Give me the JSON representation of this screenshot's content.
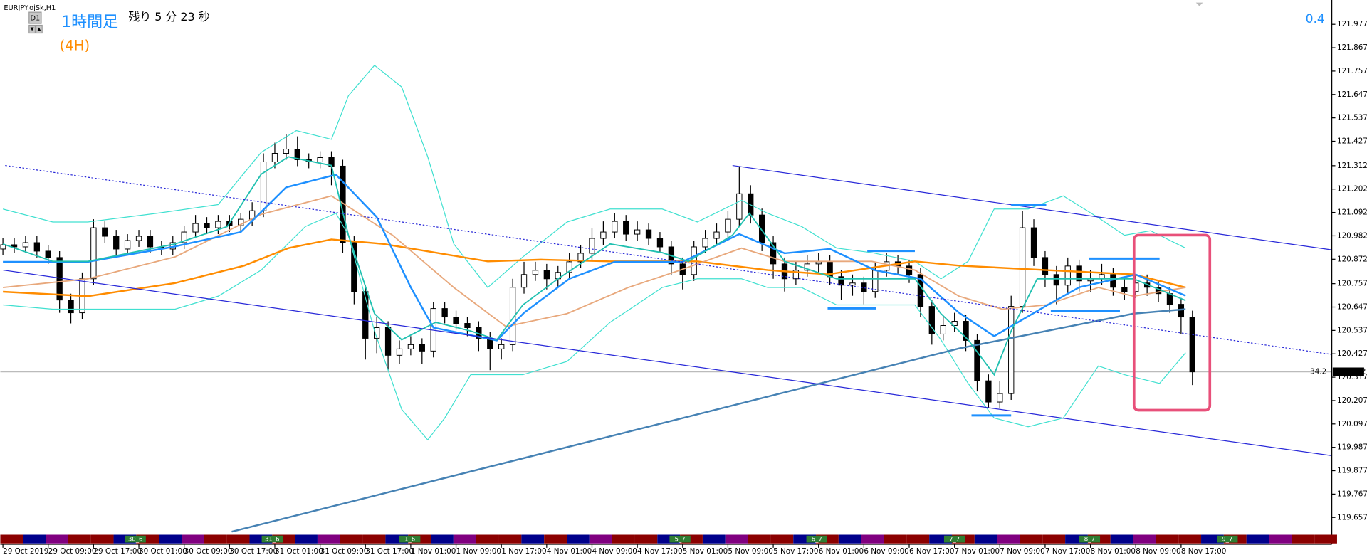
{
  "chart_data": {
    "type": "candlestick",
    "symbol_label": "EURJPY.ojSk,H1",
    "timeframe_button": "D1",
    "title": "1時間足",
    "subtitle": "(4H)",
    "countdown": "残り 5 分 23 秒",
    "corner_value": "0.4",
    "price_tag_label": "34.2",
    "current_price": 120.342,
    "ylim": [
      119.584,
      122.071
    ],
    "yticks": [
      121.977,
      121.867,
      121.757,
      121.647,
      121.537,
      121.427,
      121.312,
      121.202,
      121.092,
      120.982,
      120.872,
      120.757,
      120.647,
      120.537,
      120.427,
      120.317,
      120.207,
      120.097,
      119.987,
      119.877,
      119.767,
      119.657
    ],
    "categories": [
      "29 Oct 2019",
      null,
      null,
      null,
      "29 Oct 09:00",
      null,
      null,
      null,
      "29 Oct 17:00",
      null,
      null,
      null,
      "30 Oct 01:00",
      null,
      null,
      null,
      "30 Oct 09:00",
      null,
      null,
      null,
      "30 Oct 17:00",
      null,
      null,
      null,
      "31 Oct 01:00",
      null,
      null,
      null,
      "31 Oct 09:00",
      null,
      null,
      null,
      "31 Oct 17:00",
      null,
      null,
      null,
      "1 Nov 01:00",
      null,
      null,
      null,
      "1 Nov 09:00",
      null,
      null,
      null,
      "1 Nov 17:00",
      null,
      null,
      null,
      "4 Nov 01:00",
      null,
      null,
      null,
      "4 Nov 09:00",
      null,
      null,
      null,
      "4 Nov 17:00",
      null,
      null,
      null,
      "5 Nov 01:00",
      null,
      null,
      null,
      "5 Nov 09:00",
      null,
      null,
      null,
      "5 Nov 17:00",
      null,
      null,
      null,
      "6 Nov 01:00",
      null,
      null,
      null,
      "6 Nov 09:00",
      null,
      null,
      null,
      "6 Nov 17:00",
      null,
      null,
      null,
      "7 Nov 01:00",
      null,
      null,
      null,
      "7 Nov 09:00",
      null,
      null,
      null,
      "7 Nov 17:00",
      null,
      null,
      null,
      "8 Nov 01:00",
      null,
      null,
      null,
      "8 Nov 09:00",
      null,
      null,
      null,
      "8 Nov 17:00",
      null
    ],
    "open": [
      120.92,
      120.94,
      120.93,
      120.95,
      120.91,
      120.88,
      120.68,
      120.62,
      120.78,
      121.02,
      120.98,
      120.92,
      120.96,
      120.98,
      120.93,
      120.92,
      120.95,
      121.0,
      121.04,
      121.02,
      121.05,
      121.03,
      121.06,
      121.1,
      121.33,
      121.37,
      121.39,
      121.34,
      121.33,
      121.35,
      121.31,
      120.95,
      120.72,
      120.5,
      120.55,
      120.42,
      120.45,
      120.47,
      120.44,
      120.64,
      120.6,
      120.57,
      120.55,
      120.5,
      120.45,
      120.47,
      120.74,
      120.8,
      120.82,
      120.78,
      120.81,
      120.86,
      120.9,
      120.97,
      121.0,
      121.05,
      120.99,
      121.01,
      120.97,
      120.93,
      120.85,
      120.8,
      120.93,
      120.97,
      121.0,
      121.06,
      121.18,
      121.08,
      120.95,
      120.85,
      120.78,
      120.82,
      120.85,
      120.86,
      120.79,
      120.75,
      120.76,
      120.72,
      120.82,
      120.86,
      120.84,
      120.8,
      120.65,
      120.52,
      120.56,
      120.58,
      120.49,
      120.3,
      120.2,
      120.24,
      120.65,
      121.02,
      120.88,
      120.8,
      120.75,
      120.84,
      120.77,
      120.78,
      120.8,
      120.74,
      120.72,
      120.76,
      120.74,
      120.71,
      120.66,
      120.6
    ],
    "high": [
      120.97,
      120.97,
      120.98,
      120.98,
      120.94,
      120.91,
      120.71,
      120.81,
      121.06,
      121.05,
      121.01,
      120.99,
      121.01,
      121.01,
      120.96,
      120.98,
      121.03,
      121.08,
      121.07,
      121.08,
      121.08,
      121.09,
      121.14,
      121.37,
      121.42,
      121.46,
      121.45,
      121.37,
      121.38,
      121.38,
      121.34,
      120.98,
      120.75,
      120.6,
      120.58,
      120.49,
      120.51,
      120.5,
      120.67,
      120.67,
      120.63,
      120.6,
      120.58,
      120.53,
      120.5,
      120.78,
      120.86,
      120.86,
      120.85,
      120.84,
      120.9,
      120.94,
      121.02,
      121.05,
      121.09,
      121.08,
      121.05,
      121.04,
      121.0,
      120.96,
      120.88,
      120.96,
      121.01,
      121.04,
      121.1,
      121.31,
      121.22,
      121.11,
      120.98,
      120.88,
      120.86,
      120.89,
      120.9,
      120.89,
      120.82,
      120.8,
      120.79,
      120.86,
      120.9,
      120.89,
      120.87,
      120.83,
      120.68,
      120.6,
      120.62,
      120.61,
      120.52,
      120.33,
      120.3,
      120.7,
      121.1,
      121.06,
      120.91,
      120.84,
      120.88,
      120.87,
      120.82,
      120.85,
      120.83,
      120.78,
      120.8,
      120.8,
      120.77,
      120.74,
      120.69,
      120.63
    ],
    "low": [
      120.89,
      120.9,
      120.9,
      120.88,
      120.85,
      120.62,
      120.57,
      120.59,
      120.75,
      120.95,
      120.89,
      120.89,
      120.93,
      120.9,
      120.89,
      120.89,
      120.92,
      120.97,
      120.99,
      120.99,
      121.0,
      121.0,
      121.03,
      121.07,
      121.3,
      121.34,
      121.31,
      121.3,
      121.3,
      121.22,
      120.9,
      120.66,
      120.4,
      120.43,
      120.35,
      120.38,
      120.42,
      120.38,
      120.41,
      120.57,
      120.54,
      120.51,
      120.44,
      120.35,
      120.4,
      120.44,
      120.71,
      120.77,
      120.73,
      120.74,
      120.78,
      120.83,
      120.87,
      120.94,
      120.97,
      120.96,
      120.96,
      120.94,
      120.9,
      120.8,
      120.73,
      120.77,
      120.9,
      120.94,
      120.97,
      121.03,
      121.04,
      120.91,
      120.78,
      120.72,
      120.75,
      120.79,
      120.81,
      120.75,
      120.68,
      120.7,
      120.66,
      120.69,
      120.79,
      120.8,
      120.76,
      120.6,
      120.47,
      120.49,
      120.53,
      120.44,
      120.25,
      120.17,
      120.17,
      120.21,
      120.62,
      120.84,
      120.74,
      120.66,
      120.71,
      120.72,
      120.72,
      120.75,
      120.7,
      120.68,
      120.69,
      120.7,
      120.67,
      120.62,
      120.52,
      120.28
    ],
    "close": [
      120.94,
      120.93,
      120.95,
      120.91,
      120.88,
      120.68,
      120.62,
      120.78,
      121.02,
      120.98,
      120.92,
      120.96,
      120.98,
      120.93,
      120.92,
      120.95,
      121.0,
      121.04,
      121.02,
      121.05,
      121.03,
      121.06,
      121.1,
      121.33,
      121.37,
      121.39,
      121.34,
      121.33,
      121.35,
      121.31,
      120.95,
      120.72,
      120.5,
      120.55,
      120.42,
      120.45,
      120.47,
      120.44,
      120.64,
      120.6,
      120.57,
      120.55,
      120.5,
      120.45,
      120.47,
      120.74,
      120.8,
      120.82,
      120.78,
      120.81,
      120.86,
      120.9,
      120.97,
      121.0,
      121.05,
      120.99,
      121.01,
      120.97,
      120.93,
      120.85,
      120.8,
      120.93,
      120.97,
      121.0,
      121.06,
      121.18,
      121.08,
      120.95,
      120.85,
      120.78,
      120.82,
      120.85,
      120.86,
      120.79,
      120.75,
      120.76,
      120.72,
      120.82,
      120.86,
      120.84,
      120.8,
      120.65,
      120.52,
      120.56,
      120.58,
      120.49,
      120.3,
      120.2,
      120.24,
      120.65,
      121.02,
      120.88,
      120.8,
      120.75,
      120.84,
      120.77,
      120.78,
      120.8,
      120.74,
      120.72,
      120.76,
      120.74,
      120.71,
      120.66,
      120.6,
      120.342
    ],
    "overlays": [
      {
        "color": "#40e0d0",
        "width": 1,
        "x": [
          0,
          4.4,
          7.5,
          13.6,
          19,
          22.8,
          25.9,
          29,
          30.5,
          32.8,
          35.2,
          37.5,
          39.8,
          42.8,
          45.9,
          49.8,
          53.6,
          58.2,
          61.3,
          65.2,
          67.5,
          70.5,
          73.6,
          76.7,
          80.5,
          82.8,
          85.2,
          87.5,
          90.5,
          93.6,
          96.7,
          99,
          101.3,
          104.4
        ],
        "values": [
          121.108,
          121.047,
          121.047,
          121.088,
          121.129,
          121.375,
          121.477,
          121.436,
          121.641,
          121.784,
          121.682,
          121.354,
          120.944,
          120.739,
          120.883,
          121.047,
          121.108,
          121.108,
          121.047,
          121.149,
          121.088,
          121.026,
          120.924,
          120.903,
          120.862,
          120.78,
          120.862,
          121.108,
          121.108,
          121.17,
          121.067,
          120.985,
          121.006,
          120.924
        ]
      },
      {
        "color": "#40e0d0",
        "width": 1,
        "x": [
          0,
          4.4,
          7.5,
          15.2,
          19,
          22.8,
          26.7,
          29.4,
          30.5,
          32.8,
          35.2,
          37.5,
          39,
          41.3,
          43.6,
          45.9,
          49.8,
          53.6,
          58.2,
          61.3,
          65.2,
          67.5,
          70.5,
          73.6,
          76.7,
          80.5,
          82.8,
          85.2,
          87.5,
          90.5,
          93.6,
          96.7,
          99,
          102.1,
          104.4
        ],
        "values": [
          120.657,
          120.637,
          120.637,
          120.637,
          120.698,
          120.821,
          121.026,
          121.088,
          120.985,
          120.534,
          120.166,
          120.022,
          120.125,
          120.329,
          120.329,
          120.329,
          120.391,
          120.575,
          120.739,
          120.78,
          120.78,
          120.739,
          120.739,
          120.657,
          120.657,
          120.657,
          120.493,
          120.288,
          120.125,
          120.084,
          120.125,
          120.37,
          120.329,
          120.288,
          120.432
        ]
      },
      {
        "color": "#4682b4",
        "width": 2,
        "x": [
          20.2,
          84.4,
          99.8,
          104.4
        ],
        "values": [
          119.59,
          120.452,
          120.616,
          120.637
        ]
      },
      {
        "color": "#ff8c00",
        "width": 2,
        "x": [
          0,
          7.5,
          15.2,
          21.3,
          25.2,
          29,
          33.6,
          38.2,
          42.8,
          47.5,
          53.6,
          61.3,
          67.5,
          72.8,
          80.5,
          84.4,
          92.1,
          99.8,
          104.4
        ],
        "values": [
          120.719,
          120.698,
          120.76,
          120.842,
          120.924,
          120.965,
          120.944,
          120.903,
          120.862,
          120.87,
          120.862,
          120.862,
          120.821,
          120.801,
          120.862,
          120.842,
          120.821,
          120.801,
          120.739
        ]
      },
      {
        "color": "#e8a87c",
        "width": 1.5,
        "x": [
          0,
          7.5,
          15.2,
          22.8,
          29,
          34.4,
          39.8,
          44.4,
          49.8,
          55.2,
          59.8,
          65.2,
          69,
          76.7,
          80.5,
          84.4,
          88.2,
          92.1,
          96.7,
          99.8,
          104.4
        ],
        "values": [
          120.739,
          120.78,
          120.883,
          121.083,
          121.17,
          120.985,
          120.739,
          120.555,
          120.616,
          120.739,
          120.821,
          120.924,
          120.862,
          120.862,
          120.821,
          120.698,
          120.637,
          120.657,
          120.739,
          120.698,
          120.739
        ]
      },
      {
        "color": "#1e90ff",
        "width": 2,
        "x": [
          0,
          7.5,
          15,
          21,
          25,
          29.4,
          33,
          36,
          38,
          43.6,
          46,
          50,
          54,
          60,
          65,
          69,
          73,
          77,
          81,
          84.4,
          87.5,
          92,
          95,
          100,
          104.4
        ],
        "values": [
          120.86,
          120.86,
          120.93,
          121.0,
          121.21,
          121.27,
          121.07,
          120.74,
          120.55,
          120.49,
          120.62,
          120.78,
          120.86,
          120.86,
          120.99,
          120.9,
          120.92,
          120.82,
          120.78,
          120.62,
          120.51,
          120.65,
          120.74,
          120.8,
          120.7
        ]
      },
      {
        "color": "#20c0b0",
        "width": 1.5,
        "x": [
          0,
          4.4,
          7.5,
          15.2,
          19.8,
          22.8,
          25.2,
          29,
          30.5,
          32.8,
          35.2,
          38.2,
          41.3,
          43.6,
          45.9,
          49,
          53.6,
          58.2,
          60.5,
          64.4,
          65.9,
          69,
          73.6,
          76.7,
          80.5,
          82.8,
          85.2,
          87.5,
          89,
          91.3,
          94.4,
          99.8,
          104.4
        ],
        "values": [
          120.944,
          120.862,
          120.862,
          120.944,
          121.026,
          121.272,
          121.354,
          121.313,
          120.985,
          120.616,
          120.493,
          120.575,
          120.534,
          120.493,
          120.657,
          120.78,
          120.944,
          120.903,
          120.862,
          120.985,
          121.088,
          120.862,
          120.78,
          120.78,
          120.78,
          120.616,
          120.493,
          120.329,
          120.534,
          120.78,
          120.78,
          120.78,
          120.678
        ]
      },
      {
        "color": "#2828d8",
        "width": 1,
        "x": [
          64.4,
          117.3
        ],
        "values": [
          121.313,
          120.916
        ]
      },
      {
        "color": "#2828d8",
        "width": 1,
        "x": [
          0,
          117.3
        ],
        "values": [
          120.821,
          119.948
        ]
      },
      {
        "color": "#2828d8",
        "width": 1,
        "style": "dotted",
        "x": [
          0.2,
          117.3
        ],
        "values": [
          121.313,
          120.424
        ]
      }
    ],
    "levels": [
      {
        "value": 120.911,
        "x": [
          76.3,
          80.5
        ]
      },
      {
        "value": 120.641,
        "x": [
          72.8,
          77.1
        ]
      },
      {
        "value": 121.129,
        "x": [
          89,
          92.1
        ]
      },
      {
        "value": 120.137,
        "x": [
          85.5,
          89
        ]
      },
      {
        "value": 120.875,
        "x": [
          95.9,
          102.1
        ]
      },
      {
        "value": 120.629,
        "x": [
          92.5,
          98.6
        ]
      }
    ],
    "level_color": "#1e90ff",
    "strip_labels": [
      "30_6",
      "31_6",
      "1_6",
      "5_7",
      "6_7",
      "7_7",
      "8_7",
      "9_7"
    ]
  }
}
